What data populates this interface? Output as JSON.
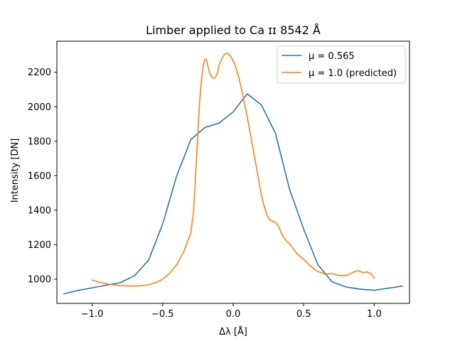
{
  "chart_data": {
    "type": "line",
    "title": "Limber applied to Ca ɪɪ 8542 Å",
    "xlabel": "Δλ [Å]",
    "ylabel": "Intensity [DN]",
    "xlim": [
      -1.25,
      1.25
    ],
    "ylim": [
      860,
      2380
    ],
    "xticks": [
      -1.0,
      -0.5,
      0.0,
      0.5,
      1.0
    ],
    "xtick_labels": [
      "−1.0",
      "−0.5",
      "0.0",
      "0.5",
      "1.0"
    ],
    "yticks": [
      1000,
      1200,
      1400,
      1600,
      1800,
      2000,
      2200
    ],
    "ytick_labels": [
      "1000",
      "1200",
      "1400",
      "1600",
      "1800",
      "2000",
      "2200"
    ],
    "grid": false,
    "legend_position": "top-right",
    "series": [
      {
        "name": "μ = 0.565",
        "color": "#1f77b4",
        "x": [
          -1.2,
          -1.1,
          -1.0,
          -0.9,
          -0.8,
          -0.7,
          -0.6,
          -0.5,
          -0.4,
          -0.3,
          -0.2,
          -0.1,
          0.0,
          0.1,
          0.2,
          0.3,
          0.4,
          0.5,
          0.6,
          0.7,
          0.8,
          0.9,
          1.0,
          1.1,
          1.2
        ],
        "y": [
          915,
          935,
          950,
          965,
          980,
          1020,
          1110,
          1320,
          1600,
          1810,
          1880,
          1905,
          1970,
          2075,
          2010,
          1845,
          1520,
          1290,
          1085,
          985,
          955,
          942,
          936,
          948,
          960
        ]
      },
      {
        "name": "μ = 1.0 (predicted)",
        "color": "#ff7f0e",
        "x": [
          -1.0,
          -0.95,
          -0.9,
          -0.85,
          -0.8,
          -0.75,
          -0.7,
          -0.65,
          -0.6,
          -0.55,
          -0.5,
          -0.45,
          -0.4,
          -0.35,
          -0.3,
          -0.28,
          -0.26,
          -0.25,
          -0.24,
          -0.23,
          -0.22,
          -0.21,
          -0.2,
          -0.19,
          -0.18,
          -0.17,
          -0.16,
          -0.15,
          -0.14,
          -0.13,
          -0.12,
          -0.11,
          -0.1,
          -0.08,
          -0.06,
          -0.04,
          -0.02,
          0.0,
          0.02,
          0.04,
          0.06,
          0.08,
          0.1,
          0.12,
          0.14,
          0.16,
          0.18,
          0.2,
          0.22,
          0.24,
          0.26,
          0.28,
          0.3,
          0.32,
          0.34,
          0.36,
          0.38,
          0.4,
          0.42,
          0.45,
          0.5,
          0.55,
          0.6,
          0.65,
          0.7,
          0.75,
          0.8,
          0.85,
          0.88,
          0.9,
          0.92,
          0.95,
          0.98,
          1.0
        ],
        "y": [
          995,
          983,
          973,
          967,
          963,
          961,
          960,
          962,
          968,
          980,
          1000,
          1035,
          1085,
          1160,
          1270,
          1400,
          1700,
          1850,
          2000,
          2110,
          2190,
          2250,
          2275,
          2275,
          2240,
          2205,
          2185,
          2170,
          2165,
          2168,
          2178,
          2200,
          2240,
          2280,
          2305,
          2310,
          2295,
          2265,
          2225,
          2170,
          2100,
          2020,
          1940,
          1850,
          1760,
          1670,
          1580,
          1490,
          1420,
          1370,
          1345,
          1335,
          1330,
          1310,
          1270,
          1240,
          1220,
          1205,
          1185,
          1150,
          1115,
          1075,
          1045,
          1030,
          1032,
          1022,
          1020,
          1040,
          1050,
          1045,
          1038,
          1042,
          1030,
          1005
        ]
      }
    ]
  }
}
